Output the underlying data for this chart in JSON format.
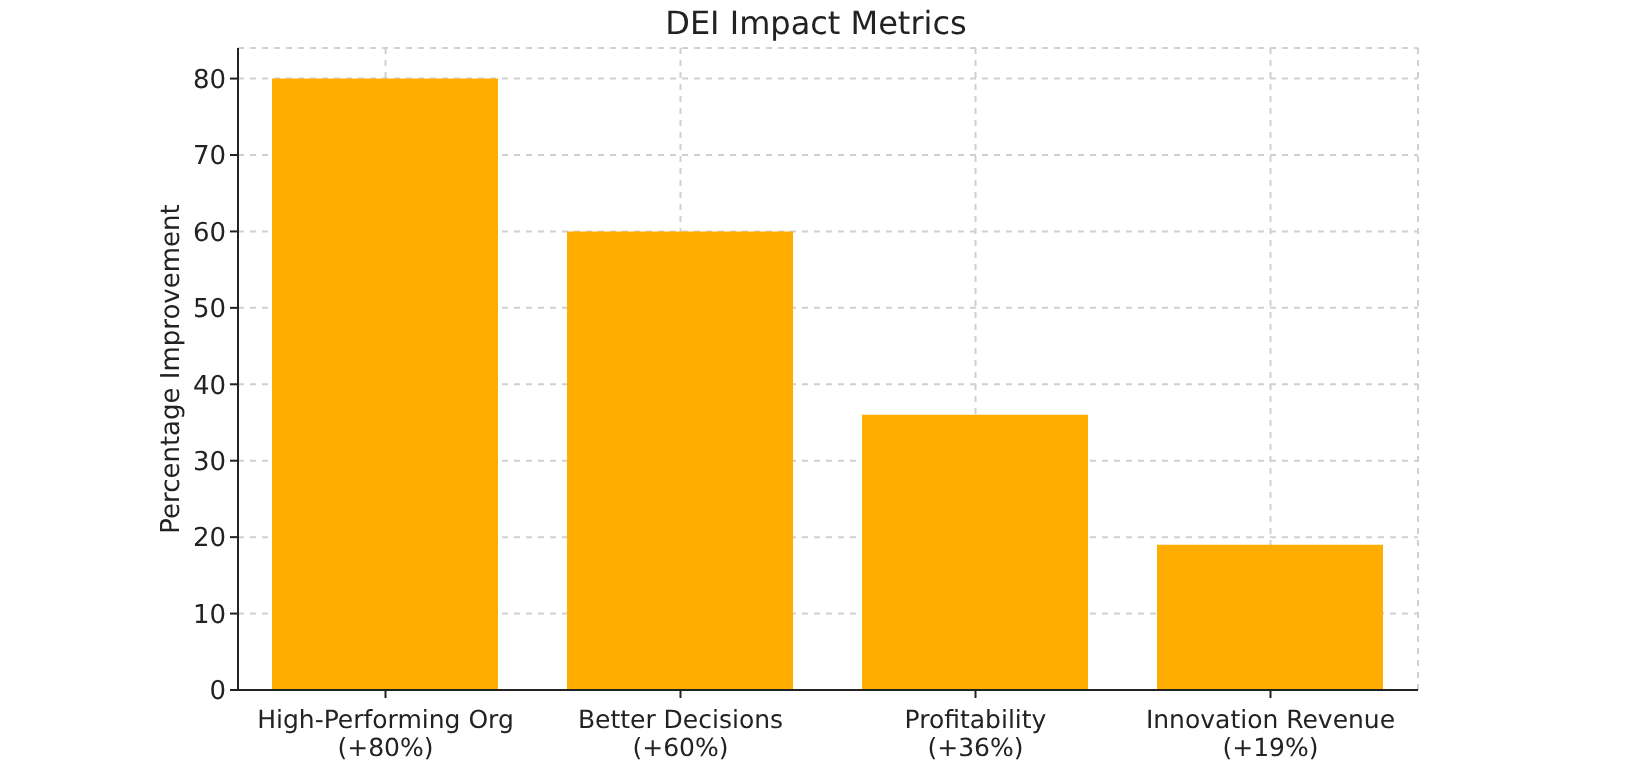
{
  "chart_data": {
    "type": "bar",
    "title": "DEI Impact Metrics",
    "ylabel": "Percentage Improvement",
    "categories": [
      "High-Performing Org\n(+80%)",
      "Better Decisions\n(+60%)",
      "Profitability\n(+36%)",
      "Innovation Revenue\n(+19%)"
    ],
    "values": [
      80,
      60,
      36,
      19
    ],
    "color": "#ffad00",
    "ylim": [
      0,
      84
    ],
    "yticks": [
      0,
      10,
      20,
      30,
      40,
      50,
      60,
      70,
      80
    ],
    "grid": true
  }
}
